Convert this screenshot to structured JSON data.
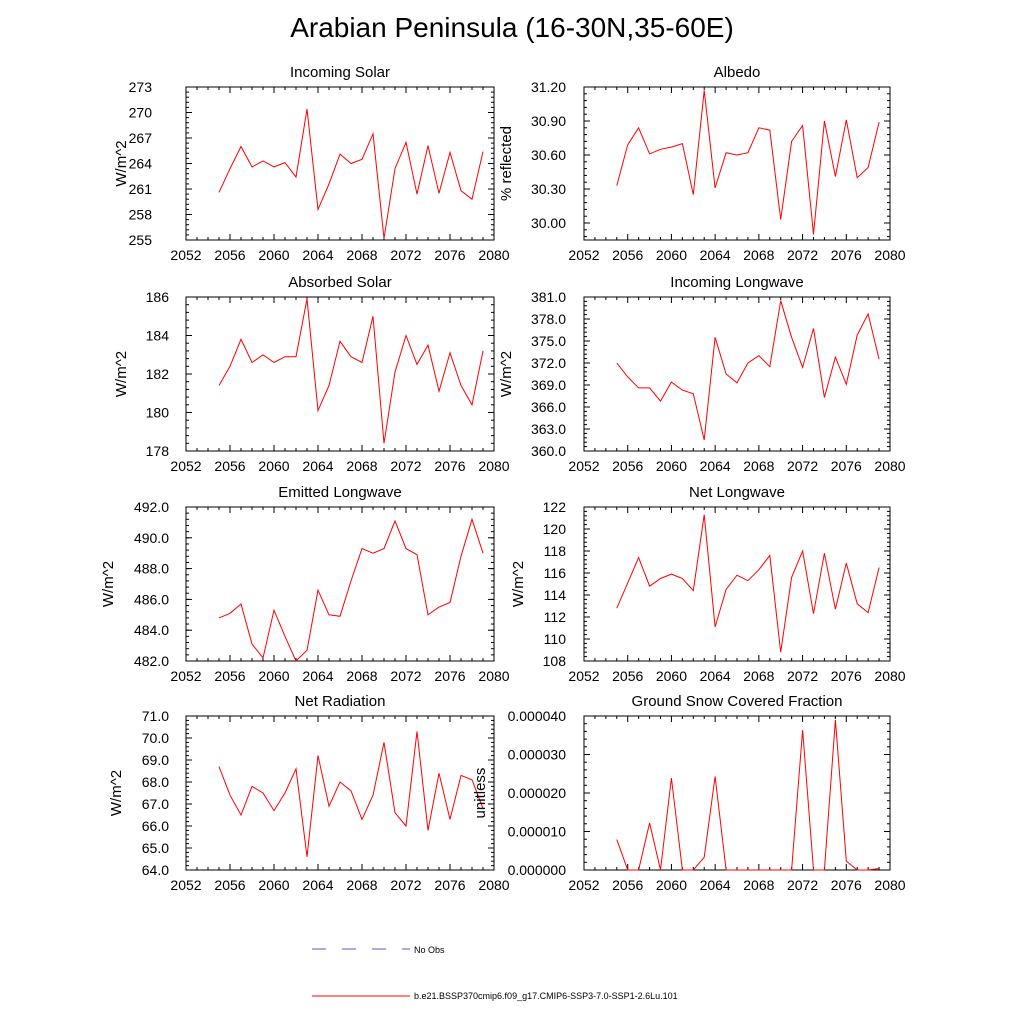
{
  "figure": {
    "title": "Arabian Peninsula (16-30N,35-60E)",
    "legend": [
      {
        "label": "No Obs",
        "color": "#5a5ad0",
        "style": "dashed"
      },
      {
        "label": "b.e21.BSSP370cmip6.f09_g17.CMIP6-SSP3-7.0-SSP1-2.6Lu.101",
        "color": "#ff0000",
        "style": "solid"
      }
    ],
    "line_color": "#ff0000"
  },
  "chart_data": [
    {
      "type": "line",
      "title": "Incoming Solar",
      "ylabel": "W/m^2",
      "xlim": [
        2052,
        2080
      ],
      "ylim": [
        255,
        273
      ],
      "xticks": [
        2052,
        2056,
        2060,
        2064,
        2068,
        2072,
        2076,
        2080
      ],
      "yticks": [
        "255",
        "258",
        "261",
        "264",
        "267",
        "270",
        "273"
      ],
      "x": [
        2055,
        2056,
        2057,
        2058,
        2059,
        2060,
        2061,
        2062,
        2063,
        2064,
        2065,
        2066,
        2067,
        2068,
        2069,
        2070,
        2071,
        2072,
        2073,
        2074,
        2075,
        2076,
        2077,
        2078,
        2079
      ],
      "values": [
        260.6,
        263.4,
        266.0,
        263.6,
        264.3,
        263.6,
        264.1,
        262.4,
        270.4,
        258.6,
        261.6,
        265.1,
        264.0,
        264.5,
        267.5,
        255.2,
        263.4,
        266.5,
        260.4,
        266.1,
        260.5,
        265.3,
        260.8,
        259.8,
        265.4
      ]
    },
    {
      "type": "line",
      "title": "Albedo",
      "ylabel": "% reflected",
      "xlim": [
        2052,
        2080
      ],
      "ylim": [
        29.85,
        31.2
      ],
      "xticks": [
        2052,
        2056,
        2060,
        2064,
        2068,
        2072,
        2076,
        2080
      ],
      "yticks": [
        "30.00",
        "30.30",
        "30.60",
        "30.90",
        "31.20"
      ],
      "x": [
        2055,
        2056,
        2057,
        2058,
        2059,
        2060,
        2061,
        2062,
        2063,
        2064,
        2065,
        2066,
        2067,
        2068,
        2069,
        2070,
        2071,
        2072,
        2073,
        2074,
        2075,
        2076,
        2077,
        2078,
        2079
      ],
      "values": [
        30.33,
        30.69,
        30.84,
        30.61,
        30.65,
        30.67,
        30.7,
        30.25,
        31.17,
        30.31,
        30.62,
        30.6,
        30.62,
        30.84,
        30.82,
        30.03,
        30.72,
        30.86,
        29.9,
        30.9,
        30.41,
        30.91,
        30.4,
        30.49,
        30.89
      ]
    },
    {
      "type": "line",
      "title": "Absorbed Solar",
      "ylabel": "W/m^2",
      "xlim": [
        2052,
        2080
      ],
      "ylim": [
        178,
        186
      ],
      "xticks": [
        2052,
        2056,
        2060,
        2064,
        2068,
        2072,
        2076,
        2080
      ],
      "yticks": [
        "178",
        "180",
        "182",
        "184",
        "186"
      ],
      "x": [
        2055,
        2056,
        2057,
        2058,
        2059,
        2060,
        2061,
        2062,
        2063,
        2064,
        2065,
        2066,
        2067,
        2068,
        2069,
        2070,
        2071,
        2072,
        2073,
        2074,
        2075,
        2076,
        2077,
        2078,
        2079
      ],
      "values": [
        181.4,
        182.4,
        183.8,
        182.6,
        183.0,
        182.6,
        182.9,
        182.9,
        185.9,
        180.1,
        181.4,
        183.7,
        182.9,
        182.6,
        185.0,
        178.4,
        182.1,
        184.0,
        182.5,
        183.5,
        181.1,
        183.1,
        181.4,
        180.4,
        183.2
      ]
    },
    {
      "type": "line",
      "title": "Incoming Longwave",
      "ylabel": "W/m^2",
      "xlim": [
        2052,
        2080
      ],
      "ylim": [
        360,
        381
      ],
      "xticks": [
        2052,
        2056,
        2060,
        2064,
        2068,
        2072,
        2076,
        2080
      ],
      "yticks": [
        "360.0",
        "363.0",
        "366.0",
        "369.0",
        "372.0",
        "375.0",
        "378.0",
        "381.0"
      ],
      "x": [
        2055,
        2056,
        2057,
        2058,
        2059,
        2060,
        2061,
        2062,
        2063,
        2064,
        2065,
        2066,
        2067,
        2068,
        2069,
        2070,
        2071,
        2072,
        2073,
        2074,
        2075,
        2076,
        2077,
        2078,
        2079
      ],
      "values": [
        372.0,
        370.1,
        368.6,
        368.6,
        366.8,
        369.4,
        368.3,
        367.8,
        361.5,
        375.5,
        370.5,
        369.3,
        372.0,
        373.0,
        371.5,
        380.5,
        375.5,
        371.4,
        376.7,
        367.3,
        372.8,
        369.1,
        375.8,
        378.7,
        372.5
      ]
    },
    {
      "type": "line",
      "title": "Emitted Longwave",
      "ylabel": "W/m^2",
      "xlim": [
        2052,
        2080
      ],
      "ylim": [
        482,
        492
      ],
      "xticks": [
        2052,
        2056,
        2060,
        2064,
        2068,
        2072,
        2076,
        2080
      ],
      "yticks": [
        "482.0",
        "484.0",
        "486.0",
        "488.0",
        "490.0",
        "492.0"
      ],
      "x": [
        2055,
        2056,
        2057,
        2058,
        2059,
        2060,
        2061,
        2062,
        2063,
        2064,
        2065,
        2066,
        2067,
        2068,
        2069,
        2070,
        2071,
        2072,
        2073,
        2074,
        2075,
        2076,
        2077,
        2078,
        2079
      ],
      "values": [
        484.8,
        485.1,
        485.7,
        483.1,
        482.2,
        485.3,
        483.6,
        482.0,
        482.7,
        486.6,
        485.0,
        484.9,
        487.2,
        489.3,
        489.0,
        489.3,
        491.1,
        489.3,
        488.9,
        485.0,
        485.5,
        485.8,
        488.8,
        491.2,
        489.0
      ]
    },
    {
      "type": "line",
      "title": "Net Longwave",
      "ylabel": "W/m^2",
      "xlim": [
        2052,
        2080
      ],
      "ylim": [
        108,
        122
      ],
      "xticks": [
        2052,
        2056,
        2060,
        2064,
        2068,
        2072,
        2076,
        2080
      ],
      "yticks": [
        "108",
        "110",
        "112",
        "114",
        "116",
        "118",
        "120",
        "122"
      ],
      "x": [
        2055,
        2056,
        2057,
        2058,
        2059,
        2060,
        2061,
        2062,
        2063,
        2064,
        2065,
        2066,
        2067,
        2068,
        2069,
        2070,
        2071,
        2072,
        2073,
        2074,
        2075,
        2076,
        2077,
        2078,
        2079
      ],
      "values": [
        112.8,
        115.1,
        117.4,
        114.8,
        115.5,
        115.9,
        115.5,
        114.4,
        121.3,
        111.1,
        114.5,
        115.8,
        115.3,
        116.3,
        117.6,
        108.8,
        115.6,
        118.0,
        112.3,
        117.8,
        112.7,
        116.9,
        113.2,
        112.4,
        116.5
      ]
    },
    {
      "type": "line",
      "title": "Net Radiation",
      "ylabel": "W/m^2",
      "xlim": [
        2052,
        2080
      ],
      "ylim": [
        64,
        71
      ],
      "xticks": [
        2052,
        2056,
        2060,
        2064,
        2068,
        2072,
        2076,
        2080
      ],
      "yticks": [
        "64.0",
        "65.0",
        "66.0",
        "67.0",
        "68.0",
        "69.0",
        "70.0",
        "71.0"
      ],
      "x": [
        2055,
        2056,
        2057,
        2058,
        2059,
        2060,
        2061,
        2062,
        2063,
        2064,
        2065,
        2066,
        2067,
        2068,
        2069,
        2070,
        2071,
        2072,
        2073,
        2074,
        2075,
        2076,
        2077,
        2078,
        2079
      ],
      "values": [
        68.7,
        67.4,
        66.5,
        67.8,
        67.5,
        66.7,
        67.5,
        68.6,
        64.6,
        69.2,
        66.9,
        68.0,
        67.6,
        66.3,
        67.4,
        69.8,
        66.6,
        66.0,
        70.3,
        65.8,
        68.4,
        66.3,
        68.3,
        68.1,
        66.8
      ]
    },
    {
      "type": "line",
      "title": "Ground Snow Covered Fraction",
      "ylabel": "unitless",
      "xlim": [
        2052,
        2080
      ],
      "ylim": [
        0,
        4e-05
      ],
      "xticks": [
        2052,
        2056,
        2060,
        2064,
        2068,
        2072,
        2076,
        2080
      ],
      "yticks": [
        "0.000000",
        "0.000010",
        "0.000020",
        "0.000030",
        "0.000040"
      ],
      "x": [
        2055,
        2056,
        2057,
        2058,
        2059,
        2060,
        2061,
        2062,
        2063,
        2064,
        2065,
        2066,
        2067,
        2068,
        2069,
        2070,
        2071,
        2072,
        2073,
        2074,
        2075,
        2076,
        2077,
        2078,
        2079
      ],
      "values": [
        7.9e-06,
        0,
        0,
        1.22e-05,
        0,
        2.39e-05,
        0,
        0,
        3.3e-06,
        2.43e-05,
        0,
        0,
        0,
        0,
        0,
        0,
        0,
        3.63e-05,
        0,
        0,
        3.9e-05,
        2.3e-06,
        0,
        0,
        4e-07
      ]
    }
  ]
}
